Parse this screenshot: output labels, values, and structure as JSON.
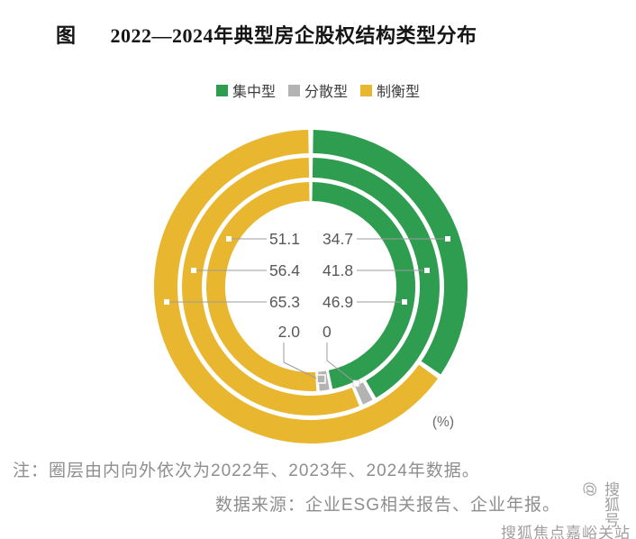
{
  "title": {
    "prefix": "图",
    "text": "2022—2024年典型房企股权结构类型分布"
  },
  "legend": {
    "items": [
      {
        "label": "集中型",
        "color": "#2f9d4f"
      },
      {
        "label": "分散型",
        "color": "#b3b3b3"
      },
      {
        "label": "制衡型",
        "color": "#e9b72f"
      }
    ]
  },
  "chart_data": {
    "type": "donut-multi-ring",
    "title": "2022—2024年典型房企股权结构类型分布",
    "unit": "%",
    "unit_label": "(%)",
    "categories": [
      "集中型",
      "分散型",
      "制衡型"
    ],
    "colors": [
      "#2f9d4f",
      "#b3b3b3",
      "#e9b72f"
    ],
    "legend_position": "top",
    "rings": [
      {
        "year": "2022",
        "position": "inner",
        "values": [
          46.9,
          2.0,
          51.1
        ]
      },
      {
        "year": "2023",
        "position": "middle",
        "values": [
          41.8,
          1.8,
          56.4
        ]
      },
      {
        "year": "2024",
        "position": "outer",
        "values": [
          34.7,
          0,
          65.3
        ]
      }
    ],
    "labels": {
      "left_column": [
        "51.1",
        "56.4",
        "65.3",
        "2.0"
      ],
      "right_column": [
        "34.7",
        "41.8",
        "46.9",
        "0"
      ]
    }
  },
  "notes": {
    "note": "注：圈层由内向外依次为2022年、2023年、2024年数据。",
    "source": "数据来源：企业ESG相关报告、企业年报。"
  },
  "watermark": {
    "vertical": "搜狐号@",
    "horizontal": "搜狐焦点嘉峪关站",
    "full": "搜狐号@搜狐焦点嘉峪关站"
  }
}
